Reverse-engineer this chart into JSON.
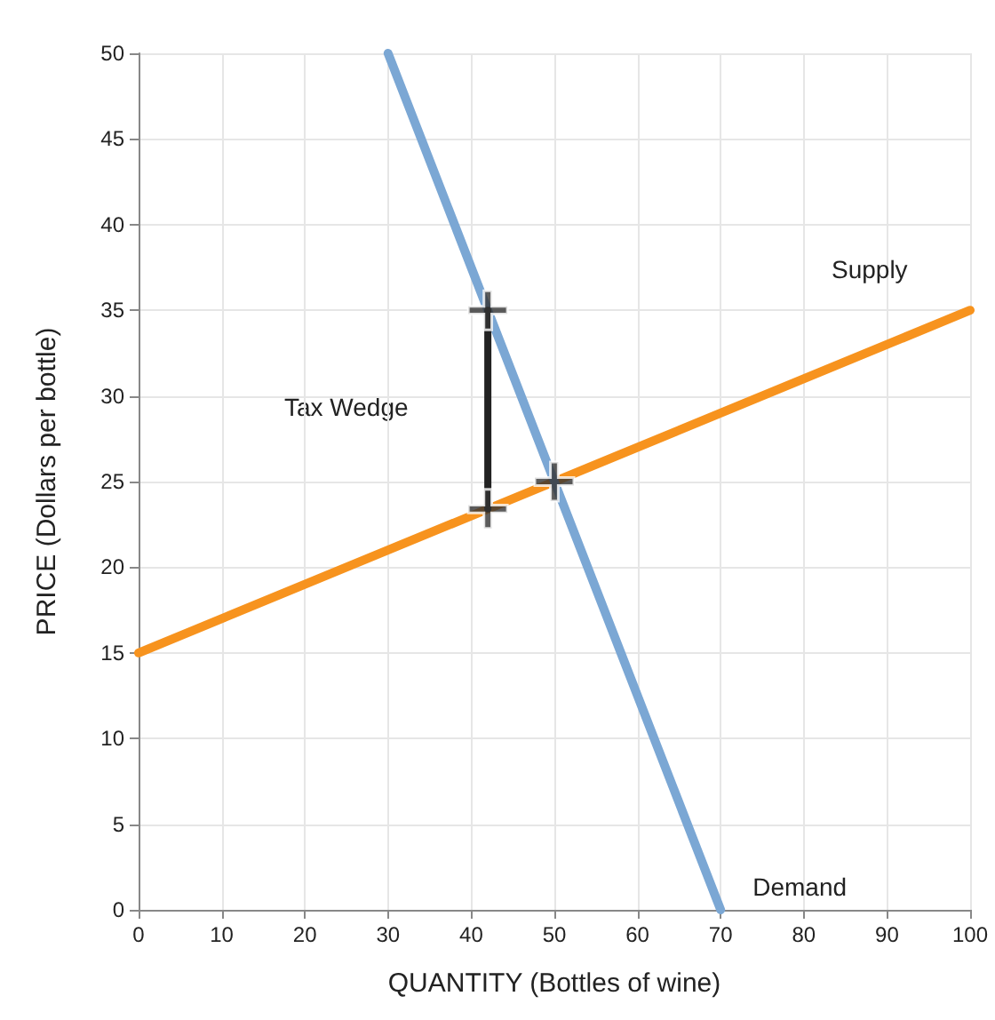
{
  "chart_data": {
    "type": "line",
    "xlabel": "QUANTITY (Bottles of wine)",
    "ylabel": "PRICE (Dollars per bottle)",
    "series": [
      {
        "name": "Supply",
        "color": "#f7931e",
        "x": [
          0,
          100
        ],
        "values": [
          15,
          35
        ]
      },
      {
        "name": "Demand",
        "color": "#7ba7d4",
        "x": [
          30,
          70
        ],
        "values": [
          50,
          0
        ]
      },
      {
        "type": "line",
        "color": "#222222",
        "x": [
          42,
          42
        ],
        "values": [
          23.4,
          35
        ]
      },
      {
        "type": "scatter",
        "marker": "cross",
        "color": "#333333",
        "x": [
          42,
          42,
          50
        ],
        "values": [
          35,
          23.4,
          25
        ]
      }
    ],
    "annotations": [
      "Tax Wedge"
    ],
    "xlim": [
      0,
      100
    ],
    "xticks": [
      0,
      10,
      20,
      30,
      40,
      50,
      60,
      70,
      80,
      90,
      100
    ],
    "ylim": [
      0,
      50
    ],
    "yticks": [
      0,
      5,
      10,
      15,
      20,
      25,
      30,
      35,
      40,
      45,
      50
    ],
    "grid": true,
    "legend": false
  }
}
